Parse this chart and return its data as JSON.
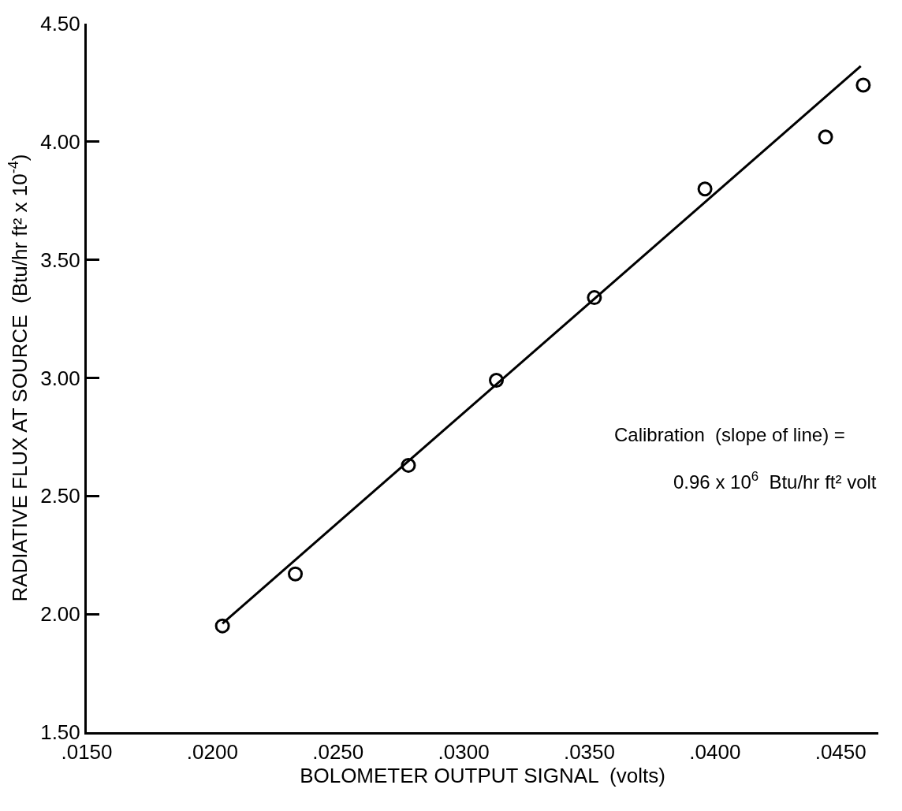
{
  "chart_data": {
    "type": "scatter",
    "xlabel": "BOLOMETER OUTPUT SIGNAL  (volts)",
    "ylabel": "RADIATIVE FLUX AT SOURCE  (Btu/hr ft² x 10$^{-4}$)",
    "annotations": [
      "Calibration  (slope of line) =",
      "0.96 x 10$^{6}$  Btu/hr ft² volt"
    ],
    "series": [
      {
        "color": "#000000",
        "marker": "circle",
        "x": [
          0.0204,
          0.0233,
          0.0278,
          0.0313,
          0.0352,
          0.0396,
          0.0444,
          0.0459
        ],
        "values": [
          1.95,
          2.17,
          2.63,
          2.99,
          3.34,
          3.8,
          4.02,
          4.24
        ]
      },
      {
        "type": "line",
        "color": "#000000",
        "marker": "none",
        "line_style": "solid",
        "x": [
          0.0204,
          0.0458
        ],
        "values": [
          1.96,
          4.32
        ]
      }
    ],
    "xlim": [
      0.015,
      0.0465
    ],
    "xticks": [
      {
        "value": 0.015,
        "label": ".0150"
      },
      {
        "value": 0.02,
        "label": ".0200"
      },
      {
        "value": 0.025,
        "label": ".0250"
      },
      {
        "value": 0.03,
        "label": ".0300"
      },
      {
        "value": 0.035,
        "label": ".0350"
      },
      {
        "value": 0.04,
        "label": ".0400"
      },
      {
        "value": 0.045,
        "label": ".0450"
      }
    ],
    "ylim": [
      1.5,
      4.5
    ],
    "yticks": [
      {
        "value": 1.5,
        "label": "1.50"
      },
      {
        "value": 2.0,
        "label": "2.00"
      },
      {
        "value": 2.5,
        "label": "2.50"
      },
      {
        "value": 3.0,
        "label": "3.00"
      },
      {
        "value": 3.5,
        "label": "3.50"
      },
      {
        "value": 4.0,
        "label": "4.00"
      },
      {
        "value": 4.5,
        "label": "4.50"
      }
    ]
  }
}
